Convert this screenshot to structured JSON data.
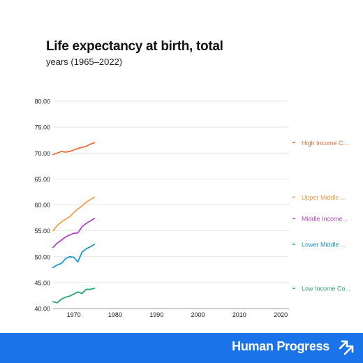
{
  "header": {
    "title": "Life expectancy at birth, total",
    "subtitle": "years (1965–2022)"
  },
  "footer": {
    "brand": "Human Progress",
    "brand_icon": "double-arrow-up-right-icon",
    "background": "#1a73e8"
  },
  "chart_data": {
    "type": "line",
    "title": "Life expectancy at birth, total",
    "subtitle": "years (1965–2022)",
    "xlabel": "",
    "ylabel": "",
    "xlim": [
      1965,
      2022
    ],
    "ylim": [
      40,
      80
    ],
    "x_ticks": [
      1970,
      1980,
      1990,
      2000,
      2010,
      2020
    ],
    "y_ticks": [
      "40.00",
      "45.00",
      "50.00",
      "55.00",
      "60.00",
      "65.00",
      "70.00",
      "75.00",
      "80.00"
    ],
    "grid": "horizontal",
    "legend": "right, labels at line ends",
    "x": [
      1965,
      1966,
      1967,
      1968,
      1969,
      1970,
      1971,
      1972,
      1973,
      1974,
      1975
    ],
    "series": [
      {
        "name": "High Income C...",
        "color": "#e8703a",
        "values": [
          69.7,
          70.0,
          70.3,
          70.2,
          70.3,
          70.6,
          70.9,
          71.1,
          71.3,
          71.7,
          72.0
        ]
      },
      {
        "name": "Upper Middle ...",
        "color": "#f0a050",
        "values": [
          55.0,
          56.0,
          56.7,
          57.2,
          57.7,
          58.5,
          59.2,
          59.8,
          60.5,
          61.0,
          61.5
        ]
      },
      {
        "name": "Middle Income...",
        "color": "#b048c0",
        "values": [
          51.8,
          52.6,
          53.2,
          53.8,
          54.2,
          54.5,
          54.6,
          55.8,
          56.4,
          56.9,
          57.4
        ]
      },
      {
        "name": "Lower Middle ...",
        "color": "#2098c8",
        "values": [
          47.9,
          48.4,
          48.7,
          49.6,
          50.0,
          49.9,
          49.0,
          50.9,
          51.5,
          51.9,
          52.4
        ]
      },
      {
        "name": "Low Income Co...",
        "color": "#27a86a",
        "values": [
          41.3,
          41.1,
          41.8,
          42.2,
          42.4,
          42.8,
          43.2,
          42.9,
          43.7,
          43.7,
          43.9
        ]
      }
    ]
  }
}
